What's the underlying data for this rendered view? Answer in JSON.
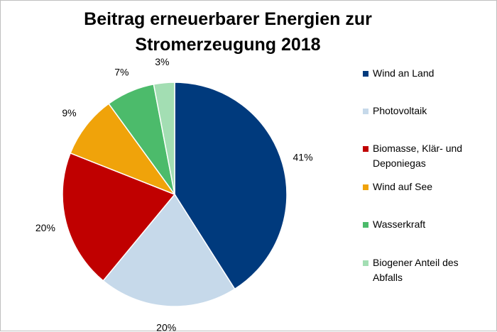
{
  "chart_data": {
    "type": "pie",
    "title": "Beitrag erneuerbarer Energien zur Stromerzeugung 2018",
    "title_lines": [
      "Beitrag erneuerbarer Energien zur",
      "Stromerzeugung 2018"
    ],
    "categories": [
      "Wind an Land",
      "Photovoltaik",
      "Biomasse, Klär- und Deponiegas",
      "Wind auf See",
      "Wasserkraft",
      "Biogener Anteil des Abfalls"
    ],
    "values": [
      41,
      20,
      20,
      9,
      7,
      3
    ],
    "value_labels": [
      "41%",
      "20%",
      "20%",
      "9%",
      "7%",
      "3%"
    ],
    "colors": [
      "#003a7d",
      "#c6d9ea",
      "#c00000",
      "#f0a30a",
      "#4cbb6b",
      "#a3deb3"
    ],
    "legend_position": "right"
  },
  "legend": {
    "items": [
      {
        "label_lines": [
          "Wind an Land"
        ]
      },
      {
        "label_lines": [
          "Photovoltaik"
        ]
      },
      {
        "label_lines": [
          "Biomasse, Klär- und",
          "Deponiegas"
        ]
      },
      {
        "label_lines": [
          "Wind auf See"
        ]
      },
      {
        "label_lines": [
          "Wasserkraft"
        ]
      },
      {
        "label_lines": [
          "Biogener Anteil des",
          "Abfalls"
        ]
      }
    ]
  }
}
